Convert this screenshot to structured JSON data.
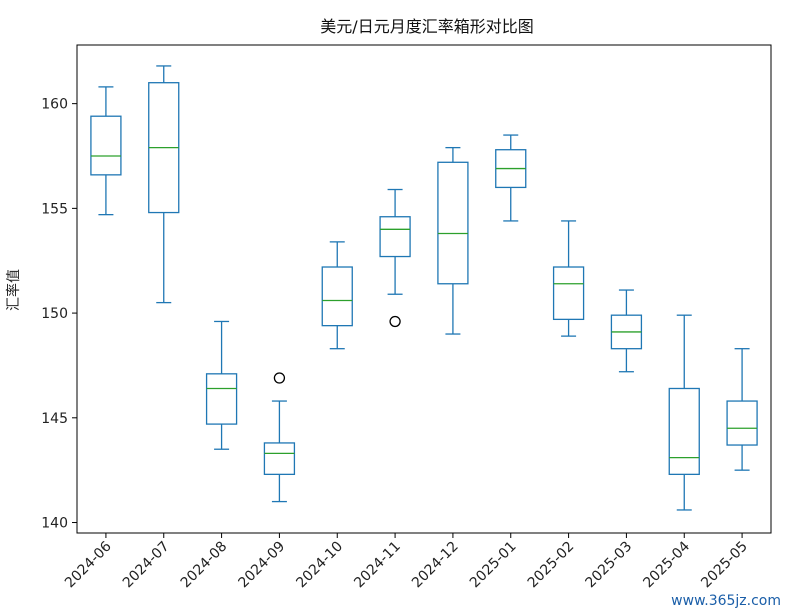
{
  "chart_data": {
    "type": "boxplot",
    "title": "美元/日元月度汇率箱形对比图",
    "xlabel": "",
    "ylabel": "汇率值",
    "ylim": [
      139.5,
      162.8
    ],
    "yticks": [
      140,
      145,
      150,
      155,
      160
    ],
    "grid": false,
    "colors": {
      "box": "#1f77b4",
      "median": "#2ca02c",
      "outlier": "#000000"
    },
    "categories": [
      "2024-06",
      "2024-07",
      "2024-08",
      "2024-09",
      "2024-10",
      "2024-11",
      "2024-12",
      "2025-01",
      "2025-02",
      "2025-03",
      "2025-04",
      "2025-05"
    ],
    "boxes": [
      {
        "whislo": 154.7,
        "q1": 156.6,
        "med": 157.5,
        "q3": 159.4,
        "whishi": 160.8,
        "fliers": []
      },
      {
        "whislo": 150.5,
        "q1": 154.8,
        "med": 157.9,
        "q3": 161.0,
        "whishi": 161.8,
        "fliers": []
      },
      {
        "whislo": 143.5,
        "q1": 144.7,
        "med": 146.4,
        "q3": 147.1,
        "whishi": 149.6,
        "fliers": []
      },
      {
        "whislo": 141.0,
        "q1": 142.3,
        "med": 143.3,
        "q3": 143.8,
        "whishi": 145.8,
        "fliers": [
          146.9
        ]
      },
      {
        "whislo": 148.3,
        "q1": 149.4,
        "med": 150.6,
        "q3": 152.2,
        "whishi": 153.4,
        "fliers": []
      },
      {
        "whislo": 150.9,
        "q1": 152.7,
        "med": 154.0,
        "q3": 154.6,
        "whishi": 155.9,
        "fliers": [
          149.6
        ]
      },
      {
        "whislo": 149.0,
        "q1": 151.4,
        "med": 153.8,
        "q3": 157.2,
        "whishi": 157.9,
        "fliers": []
      },
      {
        "whislo": 154.4,
        "q1": 156.0,
        "med": 156.9,
        "q3": 157.8,
        "whishi": 158.5,
        "fliers": []
      },
      {
        "whislo": 148.9,
        "q1": 149.7,
        "med": 151.4,
        "q3": 152.2,
        "whishi": 154.4,
        "fliers": []
      },
      {
        "whislo": 147.2,
        "q1": 148.3,
        "med": 149.1,
        "q3": 149.9,
        "whishi": 151.1,
        "fliers": []
      },
      {
        "whislo": 140.6,
        "q1": 142.3,
        "med": 143.1,
        "q3": 146.4,
        "whishi": 149.9,
        "fliers": []
      },
      {
        "whislo": 142.5,
        "q1": 143.7,
        "med": 144.5,
        "q3": 145.8,
        "whishi": 148.3,
        "fliers": []
      }
    ]
  },
  "watermark": "www.365jz.com"
}
